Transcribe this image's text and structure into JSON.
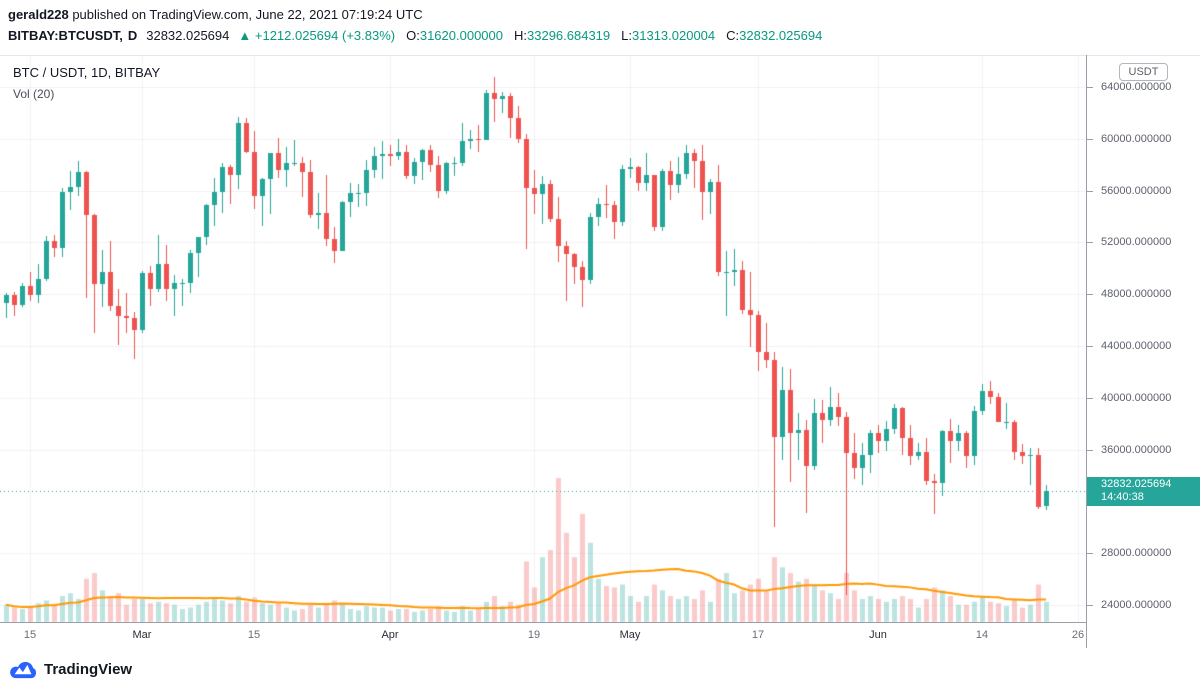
{
  "header": {
    "author": "gerald228",
    "published": "published on TradingView.com, June 22, 2021 07:19:24 UTC"
  },
  "symbol_bar": {
    "symbol": "BITBAY:BTCUSDT,",
    "interval": "D",
    "last_price": "32832.025694",
    "change_text": "▲ +1212.025694 (+3.83%)",
    "open_label": "O:",
    "open_value": "31620.000000",
    "high_label": "H:",
    "high_value": "33296.684319",
    "low_label": "L:",
    "low_value": "31313.020004",
    "close_label": "C:",
    "close_value": "32832.025694"
  },
  "legend": {
    "title": "BTC / USDT, 1D, BITBAY",
    "volume_indicator": "Vol (20)"
  },
  "price_axis": {
    "currency_badge": "USDT",
    "current_price_label": "32832.025694",
    "countdown": "14:40:38",
    "ticks": [
      {
        "value": 64000,
        "label": "64000.000000"
      },
      {
        "value": 60000,
        "label": "60000.000000"
      },
      {
        "value": 56000,
        "label": "56000.000000"
      },
      {
        "value": 52000,
        "label": "52000.000000"
      },
      {
        "value": 48000,
        "label": "48000.000000"
      },
      {
        "value": 44000,
        "label": "44000.000000"
      },
      {
        "value": 40000,
        "label": "40000.000000"
      },
      {
        "value": 36000,
        "label": "36000.000000"
      },
      {
        "value": 28000,
        "label": "28000.000000"
      },
      {
        "value": 24000,
        "label": "24000.000000"
      }
    ]
  },
  "time_axis": {
    "ticks": [
      {
        "index": 3,
        "label": "15",
        "major": false
      },
      {
        "index": 17,
        "label": "Mar",
        "major": true
      },
      {
        "index": 31,
        "label": "15",
        "major": false
      },
      {
        "index": 48,
        "label": "Apr",
        "major": true
      },
      {
        "index": 66,
        "label": "19",
        "major": false
      },
      {
        "index": 78,
        "label": "May",
        "major": true
      },
      {
        "index": 94,
        "label": "17",
        "major": false
      },
      {
        "index": 109,
        "label": "Jun",
        "major": true
      },
      {
        "index": 122,
        "label": "14",
        "major": false
      },
      {
        "index": 134,
        "label": "26",
        "major": false
      }
    ]
  },
  "footer": {
    "brand": "TradingView"
  },
  "colors": {
    "up": "#26a69a",
    "down": "#ef5350",
    "vol_up": "rgba(38,166,154,0.30)",
    "vol_down": "rgba(239,83,80,0.30)",
    "volume_ma": "#ff9800",
    "accent_text": "#089981",
    "current_price_line": "#26a69a"
  },
  "chart_data": {
    "type": "candlestick",
    "title": "BTC / USDT, 1D, BITBAY",
    "symbol": "BITBAY:BTCUSDT",
    "interval": "1D",
    "start_date": "2021-02-12",
    "end_date": "2021-06-22",
    "price_unit": "USDT",
    "volume_unit": "relative",
    "volume_ma_period": 20,
    "ylim": [
      22600,
      66400
    ],
    "y_tick_step": 4000,
    "last_close": 32832.025694,
    "ohlcv_columns": [
      "open",
      "high",
      "low",
      "close",
      "volume"
    ],
    "ohlcv": [
      [
        47300,
        48100,
        46200,
        47900,
        12
      ],
      [
        47900,
        48200,
        46300,
        47200,
        10
      ],
      [
        47200,
        48900,
        47000,
        48600,
        9
      ],
      [
        48600,
        49700,
        47500,
        47900,
        11
      ],
      [
        47900,
        50300,
        47300,
        49200,
        13
      ],
      [
        49200,
        52500,
        49000,
        52100,
        15
      ],
      [
        52100,
        52600,
        50900,
        51600,
        12
      ],
      [
        51600,
        56200,
        50900,
        55900,
        18
      ],
      [
        55900,
        57500,
        54500,
        56300,
        20
      ],
      [
        56300,
        58300,
        55600,
        57400,
        16
      ],
      [
        57400,
        57500,
        47700,
        54100,
        30
      ],
      [
        54100,
        54200,
        45000,
        48800,
        34
      ],
      [
        48800,
        51400,
        47000,
        49700,
        22
      ],
      [
        49700,
        52100,
        46700,
        47100,
        18
      ],
      [
        47100,
        48400,
        44100,
        46300,
        20
      ],
      [
        46300,
        48100,
        45000,
        46200,
        12
      ],
      [
        46200,
        46600,
        43000,
        45200,
        16
      ],
      [
        45200,
        49800,
        45000,
        49600,
        16
      ],
      [
        49600,
        50200,
        47100,
        48400,
        13
      ],
      [
        48400,
        52600,
        48200,
        50300,
        14
      ],
      [
        50300,
        51800,
        47500,
        48400,
        13
      ],
      [
        48400,
        49500,
        46300,
        48900,
        12
      ],
      [
        48900,
        49200,
        47100,
        48900,
        9
      ],
      [
        48900,
        51400,
        48100,
        51200,
        10
      ],
      [
        51200,
        52400,
        49300,
        52400,
        12
      ],
      [
        52400,
        55000,
        51800,
        54900,
        14
      ],
      [
        54900,
        57000,
        53300,
        55900,
        16
      ],
      [
        55900,
        58100,
        54300,
        57800,
        15
      ],
      [
        57800,
        58000,
        55000,
        57200,
        13
      ],
      [
        57200,
        61700,
        56100,
        61200,
        18
      ],
      [
        61200,
        61600,
        58900,
        59000,
        14
      ],
      [
        59000,
        60600,
        54600,
        55600,
        17
      ],
      [
        55600,
        57000,
        53300,
        56900,
        13
      ],
      [
        56900,
        58900,
        54200,
        58900,
        12
      ],
      [
        58900,
        60100,
        57000,
        57600,
        13
      ],
      [
        57600,
        59400,
        56300,
        58100,
        10
      ],
      [
        58100,
        59900,
        57900,
        58100,
        8
      ],
      [
        58100,
        58600,
        55500,
        57400,
        9
      ],
      [
        57400,
        58400,
        53900,
        54100,
        12
      ],
      [
        54100,
        55800,
        53000,
        54300,
        10
      ],
      [
        54300,
        57200,
        51700,
        52300,
        13
      ],
      [
        52300,
        53200,
        50400,
        51300,
        15
      ],
      [
        51300,
        55200,
        51300,
        55100,
        12
      ],
      [
        55100,
        56600,
        54000,
        55800,
        9
      ],
      [
        55800,
        56500,
        54700,
        55800,
        8
      ],
      [
        55800,
        58400,
        54800,
        57600,
        11
      ],
      [
        57600,
        59400,
        57000,
        58700,
        10
      ],
      [
        58700,
        59800,
        56900,
        58800,
        10
      ],
      [
        58800,
        59500,
        57900,
        58700,
        8
      ],
      [
        58700,
        60000,
        58400,
        59000,
        9
      ],
      [
        59000,
        59500,
        56900,
        57100,
        9
      ],
      [
        57100,
        58500,
        56500,
        58200,
        7
      ],
      [
        58200,
        59200,
        56800,
        59100,
        8
      ],
      [
        59100,
        59500,
        57400,
        58000,
        9
      ],
      [
        58000,
        58700,
        55400,
        56000,
        11
      ],
      [
        56000,
        58200,
        55700,
        58100,
        8
      ],
      [
        58100,
        58600,
        57100,
        58100,
        7
      ],
      [
        58100,
        61200,
        57900,
        59800,
        11
      ],
      [
        59800,
        60700,
        59200,
        60000,
        8
      ],
      [
        60000,
        61100,
        59000,
        59900,
        9
      ],
      [
        59900,
        63800,
        59900,
        63500,
        14
      ],
      [
        63500,
        64800,
        61300,
        63100,
        18
      ],
      [
        63100,
        63600,
        62000,
        63300,
        11
      ],
      [
        63300,
        63500,
        60100,
        61600,
        14
      ],
      [
        61600,
        62500,
        59700,
        60000,
        12
      ],
      [
        60000,
        60400,
        51500,
        56200,
        42
      ],
      [
        56200,
        57600,
        54200,
        55700,
        24
      ],
      [
        55700,
        57100,
        53400,
        56500,
        45
      ],
      [
        56500,
        56800,
        53600,
        53800,
        50
      ],
      [
        53800,
        55500,
        50500,
        51700,
        100
      ],
      [
        51700,
        52100,
        47500,
        51100,
        62
      ],
      [
        51100,
        51200,
        48800,
        50100,
        45
      ],
      [
        50100,
        50600,
        47000,
        49100,
        75
      ],
      [
        49100,
        54300,
        48800,
        54000,
        55
      ],
      [
        54000,
        55400,
        53300,
        55000,
        30
      ],
      [
        55000,
        56400,
        53900,
        54900,
        25
      ],
      [
        54900,
        55200,
        52300,
        53600,
        24
      ],
      [
        53600,
        58000,
        53300,
        57700,
        26
      ],
      [
        57700,
        58500,
        57000,
        57800,
        18
      ],
      [
        57800,
        57900,
        56000,
        56600,
        14
      ],
      [
        56600,
        58900,
        56000,
        57200,
        18
      ],
      [
        57200,
        57200,
        52900,
        53200,
        26
      ],
      [
        53200,
        57700,
        52900,
        57500,
        22
      ],
      [
        57500,
        58300,
        55300,
        56400,
        18
      ],
      [
        56400,
        58600,
        55800,
        57300,
        16
      ],
      [
        57300,
        59500,
        56900,
        58900,
        18
      ],
      [
        58900,
        59200,
        56200,
        58300,
        16
      ],
      [
        58300,
        59500,
        53700,
        55900,
        22
      ],
      [
        55900,
        56900,
        54200,
        56700,
        14
      ],
      [
        56700,
        58000,
        49400,
        49700,
        30
      ],
      [
        49700,
        51300,
        46300,
        49700,
        34
      ],
      [
        49700,
        51500,
        48600,
        49900,
        20
      ],
      [
        49900,
        50600,
        46500,
        46800,
        22
      ],
      [
        46800,
        49700,
        43900,
        46400,
        26
      ],
      [
        46400,
        46700,
        42100,
        43500,
        30
      ],
      [
        43500,
        45800,
        42300,
        42900,
        22
      ],
      [
        42900,
        43500,
        30000,
        37000,
        45
      ],
      [
        37000,
        42400,
        35200,
        40600,
        38
      ],
      [
        40600,
        42200,
        33500,
        37300,
        34
      ],
      [
        37300,
        38800,
        35200,
        37500,
        28
      ],
      [
        37500,
        38300,
        31100,
        34700,
        30
      ],
      [
        34700,
        39900,
        34400,
        38800,
        26
      ],
      [
        38800,
        39800,
        36500,
        38300,
        22
      ],
      [
        38300,
        40800,
        37800,
        39300,
        20
      ],
      [
        39300,
        40400,
        37800,
        38500,
        16
      ],
      [
        38500,
        38900,
        24800,
        35700,
        34
      ],
      [
        35700,
        37300,
        33700,
        34600,
        22
      ],
      [
        34600,
        36500,
        33300,
        35600,
        16
      ],
      [
        35600,
        37500,
        34200,
        37300,
        18
      ],
      [
        37300,
        37900,
        35700,
        36700,
        16
      ],
      [
        36700,
        38200,
        35900,
        37600,
        14
      ],
      [
        37600,
        39500,
        37200,
        39200,
        16
      ],
      [
        39200,
        39300,
        35600,
        36900,
        18
      ],
      [
        36900,
        37900,
        34800,
        35500,
        16
      ],
      [
        35500,
        36500,
        35200,
        35800,
        10
      ],
      [
        35800,
        36900,
        33300,
        33600,
        16
      ],
      [
        33600,
        34100,
        31000,
        33400,
        24
      ],
      [
        33400,
        37500,
        32400,
        37400,
        22
      ],
      [
        37400,
        38400,
        35000,
        36700,
        18
      ],
      [
        36700,
        37900,
        35900,
        37300,
        12
      ],
      [
        37300,
        37400,
        34600,
        35500,
        12
      ],
      [
        35500,
        39400,
        34800,
        39000,
        14
      ],
      [
        39000,
        41100,
        38700,
        40500,
        18
      ],
      [
        40500,
        41300,
        39500,
        40100,
        14
      ],
      [
        40100,
        40400,
        38100,
        38100,
        13
      ],
      [
        38100,
        39600,
        37600,
        38100,
        11
      ],
      [
        38100,
        38300,
        35200,
        35800,
        16
      ],
      [
        35800,
        36400,
        34900,
        35500,
        10
      ],
      [
        35500,
        36100,
        33300,
        35600,
        12
      ],
      [
        35600,
        36100,
        31400,
        31600,
        26
      ],
      [
        31620,
        33296.684319,
        31313.020004,
        32832.025694,
        14
      ]
    ]
  }
}
